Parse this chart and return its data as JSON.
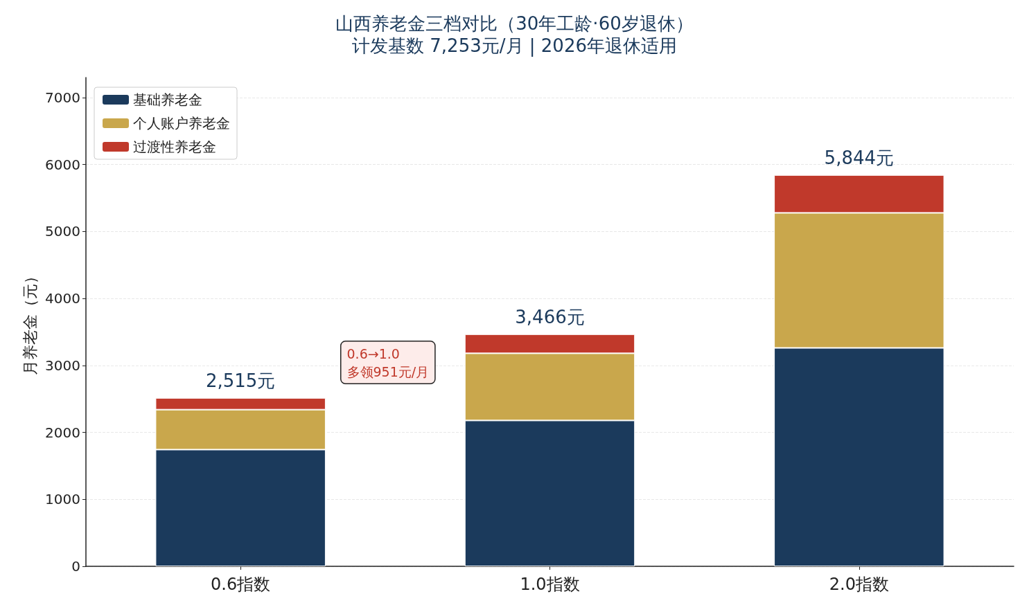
{
  "chart_data": {
    "type": "bar",
    "title": "山西养老金三档对比（30年工龄·60岁退休）",
    "subtitle": "计发基数 7,253元/月 | 2026年退休适用",
    "ylabel": "月养老金（元）",
    "categories": [
      "0.6指数",
      "1.0指数",
      "2.0指数"
    ],
    "stacked": true,
    "series": [
      {
        "name": "基础养老金",
        "color": "#1b3a5c",
        "values": [
          1743,
          2178,
          3262
        ]
      },
      {
        "name": "个人账户养老金",
        "color": "#c9a74c",
        "values": [
          597,
          1003,
          2017
        ]
      },
      {
        "name": "过渡性养老金",
        "color": "#c0392b",
        "values": [
          175,
          285,
          565
        ]
      }
    ],
    "totals": [
      "2,515元",
      "3,466元",
      "5,844元"
    ],
    "annotations": [
      "0.6→1.0\n多领951元/月"
    ],
    "ylim": [
      0,
      7300
    ],
    "yticks": [
      0,
      1000,
      2000,
      3000,
      4000,
      5000,
      6000,
      7000
    ],
    "grid": "y",
    "legend": "top left"
  }
}
